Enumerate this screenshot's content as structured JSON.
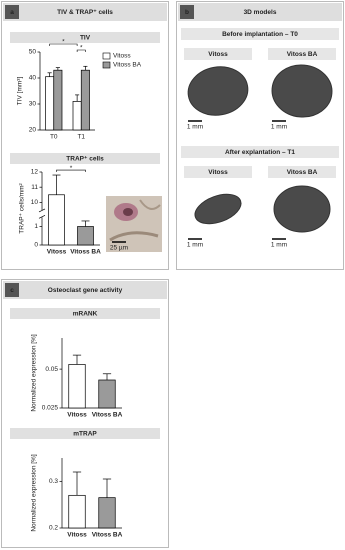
{
  "panels": [
    {
      "label": "a",
      "title": "TIV & TRAP⁺ cells"
    },
    {
      "label": "b",
      "title": "3D models"
    },
    {
      "label": "c",
      "title": "Osteoclast gene activity"
    }
  ],
  "models": {
    "sections": [
      {
        "title": "Before implantation – T0",
        "labels": [
          "Vitoss",
          "Vitoss BA"
        ]
      },
      {
        "title": "After explantation – T1",
        "labels": [
          "Vitoss",
          "Vitoss BA"
        ]
      }
    ],
    "scale_bar": "1 mm"
  },
  "inset": {
    "scale_bar": "25 µm"
  },
  "chart_data": [
    {
      "type": "bar",
      "title": "TIV",
      "ylabel": "TIV [mm³]",
      "categories": [
        "T0",
        "T1"
      ],
      "series": [
        {
          "name": "Vitoss",
          "color": "#ffffff",
          "values": [
            40.5,
            31
          ],
          "errors": [
            1.5,
            2.5
          ]
        },
        {
          "name": "Vitoss BA",
          "color": "#9a9a9a",
          "values": [
            43,
            43
          ],
          "errors": [
            1,
            1.5
          ]
        }
      ],
      "ylim": [
        20,
        50
      ],
      "yticks": [
        20,
        30,
        40,
        50
      ],
      "legend": "upper right",
      "annotations": [
        "*",
        "*"
      ]
    },
    {
      "type": "bar",
      "title": "TRAP⁺ cells",
      "ylabel": "TRAP⁺ cells/mm²",
      "categories": [
        "Vitoss",
        "Vitoss BA"
      ],
      "values": [
        10.5,
        1
      ],
      "errors": [
        1.3,
        0.3
      ],
      "colors": [
        "#ffffff",
        "#9a9a9a"
      ],
      "ylim": [
        0,
        12
      ],
      "yticks": [
        0,
        1,
        10,
        11,
        12
      ],
      "axis_break": [
        1.5,
        9.5
      ],
      "annotations": [
        "*"
      ]
    },
    {
      "type": "bar",
      "title": "mRANK",
      "ylabel": "Normalized expression [%]",
      "categories": [
        "Vitoss",
        "Vitoss BA"
      ],
      "values": [
        0.053,
        0.043
      ],
      "errors": [
        0.006,
        0.004
      ],
      "colors": [
        "#ffffff",
        "#9a9a9a"
      ],
      "ylim": [
        0.025,
        0.07
      ],
      "yticks": [
        0.025,
        0.05
      ]
    },
    {
      "type": "bar",
      "title": "mTRAP",
      "ylabel": "Normalized expression [%]",
      "categories": [
        "Vitoss",
        "Vitoss BA"
      ],
      "values": [
        0.27,
        0.265
      ],
      "errors": [
        0.05,
        0.04
      ],
      "colors": [
        "#ffffff",
        "#9a9a9a"
      ],
      "ylim": [
        0.2,
        0.35
      ],
      "yticks": [
        0.2,
        0.3
      ]
    }
  ]
}
